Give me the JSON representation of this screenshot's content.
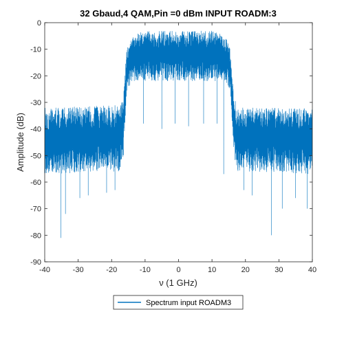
{
  "chart_data": {
    "type": "line",
    "title": "32 Gbaud,4 QAM,Pin =0 dBm INPUT ROADM:3",
    "xlabel": "ν (1 GHz)",
    "ylabel": "Amplitude (dB)",
    "xlim": [
      -40,
      40
    ],
    "ylim": [
      -90,
      0
    ],
    "xticks": [
      -40,
      -30,
      -20,
      -10,
      0,
      10,
      20,
      30,
      40
    ],
    "xtick_labels": [
      "-40",
      "-30",
      "-20",
      "-10",
      "0",
      "10",
      "20",
      "30",
      "40"
    ],
    "yticks": [
      0,
      -10,
      -20,
      -30,
      -40,
      -50,
      -60,
      -70,
      -80,
      -90
    ],
    "ytick_labels": [
      "0",
      "-10",
      "-20",
      "-30",
      "-40",
      "-50",
      "-60",
      "-70",
      "-80",
      "-90"
    ],
    "grid": false,
    "legend_position": "bottom-center",
    "series": [
      {
        "name": "Spectrum input ROADM3",
        "color": "#0072BD",
        "envelope": [
          {
            "x": -40,
            "top": -32,
            "bottom": -57
          },
          {
            "x": -17.5,
            "top": -31,
            "bottom": -56
          },
          {
            "x": -16.5,
            "top": -27,
            "bottom": -50
          },
          {
            "x": -15.5,
            "top": -10,
            "bottom": -26
          },
          {
            "x": -14,
            "top": -5,
            "bottom": -22
          },
          {
            "x": -10,
            "top": -3,
            "bottom": -22
          },
          {
            "x": 0,
            "top": -3,
            "bottom": -22
          },
          {
            "x": 10,
            "top": -3,
            "bottom": -22
          },
          {
            "x": 14,
            "top": -5,
            "bottom": -22
          },
          {
            "x": 15.5,
            "top": -10,
            "bottom": -26
          },
          {
            "x": 16.5,
            "top": -27,
            "bottom": -50
          },
          {
            "x": 17.5,
            "top": -32,
            "bottom": -56
          },
          {
            "x": 40,
            "top": -32,
            "bottom": -57
          }
        ],
        "dips": [
          {
            "x": -35.2,
            "y": -81
          },
          {
            "x": -33.8,
            "y": -72
          },
          {
            "x": -29.5,
            "y": -66
          },
          {
            "x": -27,
            "y": -65
          },
          {
            "x": -21.5,
            "y": -64
          },
          {
            "x": -19,
            "y": -63
          },
          {
            "x": -10.5,
            "y": -38
          },
          {
            "x": -5,
            "y": -40
          },
          {
            "x": -1,
            "y": -38
          },
          {
            "x": 3,
            "y": -39
          },
          {
            "x": 7.5,
            "y": -38
          },
          {
            "x": 11.5,
            "y": -38
          },
          {
            "x": 13.5,
            "y": -57
          },
          {
            "x": 19.5,
            "y": -63
          },
          {
            "x": 22,
            "y": -65
          },
          {
            "x": 27.8,
            "y": -80
          },
          {
            "x": 31,
            "y": -70
          },
          {
            "x": 35,
            "y": -66
          },
          {
            "x": 38.5,
            "y": -70
          }
        ]
      }
    ]
  }
}
